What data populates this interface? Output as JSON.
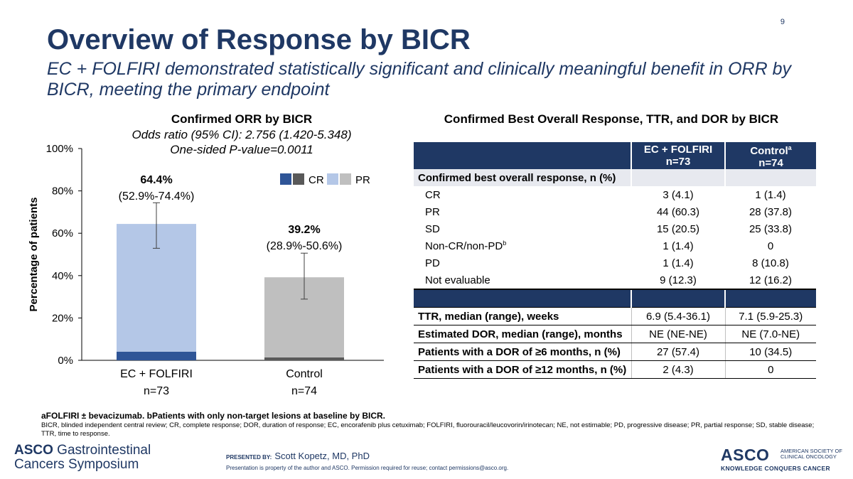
{
  "slide_number": "9",
  "title": "Overview of Response by BICR",
  "subtitle": "EC + FOLFIRI demonstrated statistically significant and clinically meaningful benefit in ORR by BICR, meeting the primary endpoint",
  "chart": {
    "title": "Confirmed ORR by BICR",
    "odds_ratio": "Odds ratio (95% CI): 2.756 (1.420-5.348)",
    "p_value": "One-sided P-value=0.0011"
  },
  "chart_data": {
    "type": "bar",
    "stacked": true,
    "ylabel": "Percentage of patients",
    "ylim": [
      0,
      100
    ],
    "yticks": [
      "0%",
      "20%",
      "40%",
      "60%",
      "80%",
      "100%"
    ],
    "categories": [
      "EC + FOLFIRI",
      "Control"
    ],
    "category_n": [
      "n=73",
      "n=74"
    ],
    "legend": [
      "CR",
      "PR"
    ],
    "series": [
      {
        "name": "CR",
        "values": [
          4.1,
          1.4
        ],
        "colors": [
          "#2f5597",
          "#595959"
        ]
      },
      {
        "name": "PR",
        "values": [
          60.3,
          37.8
        ],
        "colors": [
          "#b4c7e7",
          "#bfbfbf"
        ]
      }
    ],
    "totals": [
      64.4,
      39.2
    ],
    "total_labels": [
      "64.4%",
      "39.2%"
    ],
    "ci_labels": [
      "(52.9%-74.4%)",
      "(28.9%-50.6%)"
    ],
    "ci": [
      [
        52.9,
        74.4
      ],
      [
        28.9,
        50.6
      ]
    ]
  },
  "table": {
    "title": "Confirmed Best Overall Response, TTR, and DOR by BICR",
    "col1_line1": "EC + FOLFIRI",
    "col1_line2": "n=73",
    "col2_line1": "Control",
    "col2_sup": "a",
    "col2_line2": "n=74",
    "section_label": "Confirmed best overall response, n (%)",
    "rows": [
      {
        "label": "CR",
        "a": "3 (4.1)",
        "b": "1 (1.4)"
      },
      {
        "label": "PR",
        "a": "44 (60.3)",
        "b": "28 (37.8)"
      },
      {
        "label": "SD",
        "a": "15 (20.5)",
        "b": "25 (33.8)"
      },
      {
        "label": "Non-CR/non-PD",
        "sup": "b",
        "a": "1 (1.4)",
        "b": "0"
      },
      {
        "label": "PD",
        "a": "1 (1.4)",
        "b": "8 (10.8)"
      },
      {
        "label": "Not evaluable",
        "a": "9 (12.3)",
        "b": "12 (16.2)"
      }
    ],
    "bold_rows": [
      {
        "label": "TTR, median (range), weeks",
        "a": "6.9 (5.4-36.1)",
        "b": "7.1 (5.9-25.3)"
      },
      {
        "label": "Estimated DOR, median (range), months",
        "a": "NE (NE-NE)",
        "b": "NE (7.0-NE)"
      },
      {
        "label": "Patients with a DOR of ≥6 months, n (%)",
        "a": "27 (57.4)",
        "b": "10 (34.5)"
      },
      {
        "label": "Patients with a DOR of ≥12 months, n (%)",
        "a": "2 (4.3)",
        "b": "0"
      }
    ]
  },
  "footnotes": {
    "line1": "aFOLFIRI ± bevacizumab. bPatients with only non-target lesions at baseline by BICR.",
    "line2": "BICR, blinded independent central review; CR, complete response; DOR, duration of response; EC, encorafenib plus cetuximab; FOLFIRI, fluorouracil/leucovorin/irinotecan; NE, not estimable; PD, progressive disease; PR, partial response; SD, stable disease; TTR, time to response."
  },
  "footer": {
    "logo_left_bold": "ASCO",
    "logo_left_rest": " Gastrointestinal",
    "logo_left_line2": "Cancers Symposium",
    "presented_by": "PRESENTED BY:",
    "presenter": "Scott Kopetz, MD, PhD",
    "permission": "Presentation is property of the author and ASCO. Permission required for reuse; contact permissions@asco.org.",
    "logo_right": "ASCO",
    "logo_right_side": "AMERICAN SOCIETY OF CLINICAL ONCOLOGY",
    "logo_right_tag": "KNOWLEDGE CONQUERS CANCER"
  },
  "colors": {
    "navy": "#1f3864"
  }
}
